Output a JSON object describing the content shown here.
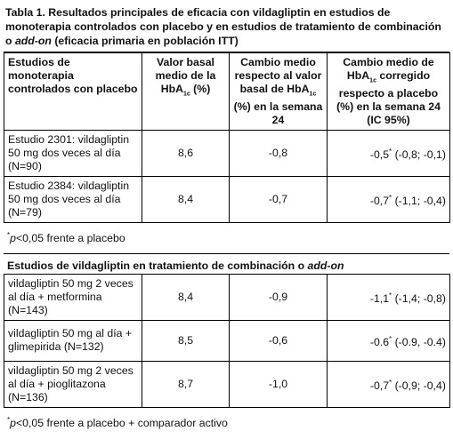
{
  "title": [
    "Tabla 1. Resultados principales de eficacia con vildagliptin en estudios de monoterapia controlados con placebo y en estudios de tratamiento de combinación o ",
    "add-on",
    " (eficacia primaria en población ITT)"
  ],
  "table1": {
    "header": [
      [
        "Estudios de monoterapia controlados con placebo"
      ],
      [
        "Valor basal medio de la HbA",
        "1c",
        " (%)"
      ],
      [
        "Cambio medio respecto al valor basal de HbA",
        "1c",
        " (%) en la semana 24"
      ],
      [
        "Cambio medio de HbA",
        "1c",
        " corregido respecto a placebo (%) en la semana 24 (IC 95%)"
      ]
    ],
    "rows": [
      [
        "Estudio 2301: vildagliptin 50 mg dos veces al día (N=90)",
        "8,6",
        "-0,8",
        [
          "-0,5",
          "*",
          " (-0,8; -0,1)"
        ]
      ],
      [
        "Estudio 2384: vildagliptin 50 mg dos veces al día (N=79)",
        "8,4",
        "-0,7",
        [
          "-0,7",
          "*",
          " (-1,1; -0,4)"
        ]
      ]
    ],
    "footnote": [
      "*",
      "p",
      "<0,05 frente a placebo"
    ]
  },
  "table2": {
    "title": [
      "Estudios de vildagliptin en tratamiento de combinación o ",
      "add-on"
    ],
    "rows": [
      [
        "vildagliptin 50 mg 2 veces al día + metformina (N=143)",
        "8,4",
        "-0,9",
        [
          "-1,1",
          "*",
          " (-1,4; -0,8)"
        ]
      ],
      [
        "vildagliptin 50 mg al día + glimepirida (N=132)",
        "8,5",
        "-0,6",
        [
          "-0.6",
          "*",
          " (-0.9, -0.4)"
        ]
      ],
      [
        "vildagliptin 50 mg 2 veces al día + pioglitazona (N=136)",
        "8,7",
        "-1,0",
        [
          "-0,7",
          "*",
          " (-0,9; -0,4)"
        ]
      ]
    ],
    "footnote": [
      "*",
      "p",
      "<0,05 frente a placebo + comparador activo"
    ]
  }
}
